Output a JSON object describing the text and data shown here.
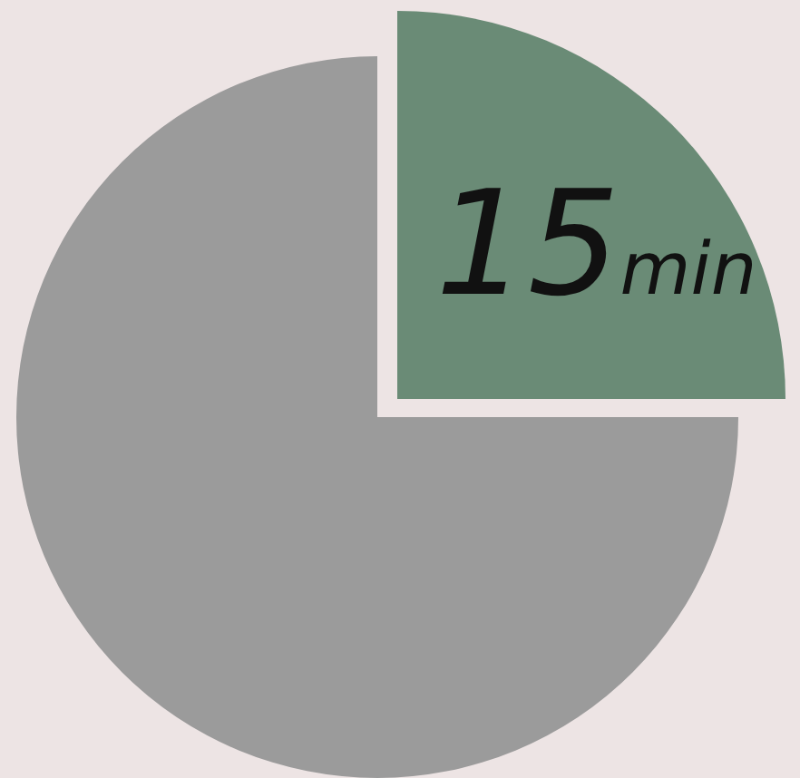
{
  "chart_data": {
    "type": "pie",
    "categories": [
      null,
      null
    ],
    "values": [
      15,
      45
    ],
    "colors": [
      "#6a8b76",
      "#9b9b9b"
    ],
    "value_labels": [
      "15$_{min}$",
      null
    ]
  }
}
